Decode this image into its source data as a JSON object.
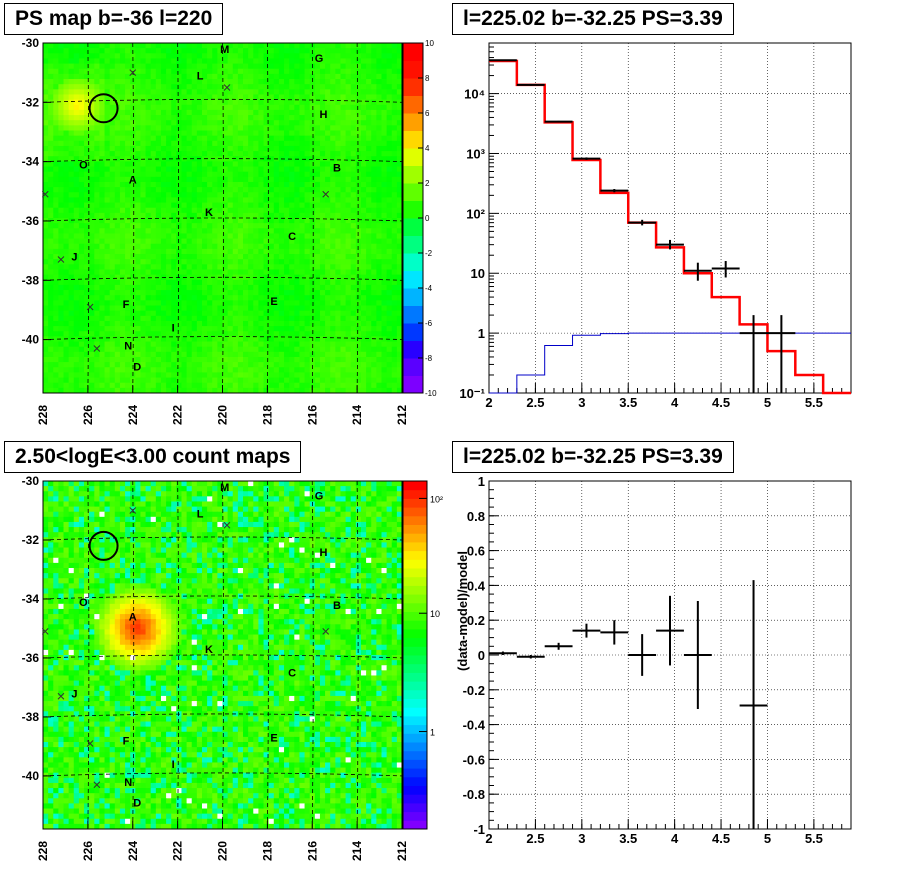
{
  "panels": {
    "tl_title": "PS map b=-36 l=220",
    "tr_title": "l=225.02 b=-32.25 PS=3.39",
    "bl_title": "2.50<logE<3.00 count maps",
    "br_title": "l=225.02 b=-32.25 PS=3.39"
  },
  "maps": {
    "x_ticks": [
      "228",
      "226",
      "224",
      "222",
      "220",
      "218",
      "216",
      "214",
      "212"
    ],
    "y_ticks": [
      "-30",
      "-32",
      "-34",
      "-36",
      "-38",
      "-40"
    ],
    "source_labels": [
      {
        "t": "M",
        "l": 219.9,
        "b": -30.2
      },
      {
        "t": "G",
        "l": 215.7,
        "b": -30.5
      },
      {
        "t": "L",
        "l": 221.0,
        "b": -31.1
      },
      {
        "t": "H",
        "l": 215.5,
        "b": -32.4
      },
      {
        "t": "O",
        "l": 226.2,
        "b": -34.1
      },
      {
        "t": "B",
        "l": 214.9,
        "b": -34.2
      },
      {
        "t": "A",
        "l": 224.0,
        "b": -34.6
      },
      {
        "t": "K",
        "l": 220.6,
        "b": -35.7
      },
      {
        "t": "C",
        "l": 216.9,
        "b": -36.5
      },
      {
        "t": "J",
        "l": 226.6,
        "b": -37.2
      },
      {
        "t": "E",
        "l": 217.7,
        "b": -38.7
      },
      {
        "t": "F",
        "l": 224.3,
        "b": -38.8
      },
      {
        "t": "I",
        "l": 222.2,
        "b": -39.6
      },
      {
        "t": "N",
        "l": 224.2,
        "b": -40.2
      },
      {
        "t": "D",
        "l": 223.8,
        "b": -40.9
      }
    ],
    "crosses": [
      {
        "l": 224.0,
        "b": -31.0
      },
      {
        "l": 219.8,
        "b": -31.5
      },
      {
        "l": 215.4,
        "b": -35.1
      },
      {
        "l": 227.9,
        "b": -35.1
      },
      {
        "l": 227.2,
        "b": -37.3
      },
      {
        "l": 225.9,
        "b": -38.9
      },
      {
        "l": 225.6,
        "b": -40.3
      }
    ],
    "circle": {
      "l": 225.3,
      "b": -32.2
    },
    "ps_colorbar": {
      "ticks": [
        "10",
        "8",
        "6",
        "4",
        "2",
        "0",
        "-2",
        "-4",
        "-6",
        "-8",
        "-10"
      ],
      "colors": [
        "#7d00ff",
        "#5a00ff",
        "#2800ff",
        "#0038ff",
        "#0078ff",
        "#00b4ff",
        "#00e6ff",
        "#00ffc8",
        "#00ff80",
        "#00ff40",
        "#20ff00",
        "#60ff00",
        "#a0ff00",
        "#e0ff00",
        "#ffd800",
        "#ffa000",
        "#ff6800",
        "#ff3000",
        "#ff1000",
        "#ff0000"
      ]
    },
    "count_colorbar": {
      "ticks": [
        "10²",
        "10",
        "1"
      ]
    }
  },
  "chart_data": [
    {
      "type": "line",
      "title": "l=225.02 b=-32.25 PS=3.39",
      "xlabel": "",
      "ylabel": "",
      "xlim": [
        2,
        5.9
      ],
      "ylim": [
        0.1,
        70000
      ],
      "yscale": "log",
      "x_ticks": [
        "2",
        "2.5",
        "3",
        "3.5",
        "4",
        "4.5",
        "5",
        "5.5"
      ],
      "y_ticks": [
        "10⁻¹",
        "1",
        "10",
        "10²",
        "10³",
        "10⁴"
      ],
      "grid": true,
      "bin_edges": [
        2.0,
        2.3,
        2.6,
        2.9,
        3.2,
        3.5,
        3.8,
        4.1,
        4.4,
        4.7,
        5.0,
        5.3,
        5.6,
        5.9
      ],
      "series": [
        {
          "name": "",
          "color": "#ff0000",
          "values": [
            35000,
            14000,
            3300,
            780,
            220,
            70,
            27,
            10,
            4,
            1.4,
            0.5,
            0.2,
            0.1
          ]
        },
        {
          "name": "",
          "color": "#0000c8",
          "values": [
            0.1,
            0.2,
            0.62,
            0.92,
            0.98,
            1.0,
            1.0,
            1.0,
            1.0,
            1.0,
            1.0,
            1.0,
            1.0
          ]
        }
      ],
      "points": [
        {
          "x": 2.15,
          "y": 36000,
          "lo": 35000,
          "hi": 37000
        },
        {
          "x": 2.45,
          "y": 14000,
          "lo": 13500,
          "hi": 14500
        },
        {
          "x": 2.75,
          "y": 3400,
          "lo": 3300,
          "hi": 3500
        },
        {
          "x": 3.05,
          "y": 820,
          "lo": 780,
          "hi": 860
        },
        {
          "x": 3.35,
          "y": 240,
          "lo": 225,
          "hi": 255
        },
        {
          "x": 3.65,
          "y": 70,
          "lo": 63,
          "hi": 78
        },
        {
          "x": 3.95,
          "y": 30,
          "lo": 25,
          "hi": 36
        },
        {
          "x": 4.25,
          "y": 11,
          "lo": 7.5,
          "hi": 15
        },
        {
          "x": 4.55,
          "y": 12,
          "lo": 8.5,
          "hi": 16
        },
        {
          "x": 4.85,
          "y": 1.0,
          "lo": 0.1,
          "hi": 2.0
        },
        {
          "x": 5.15,
          "y": 1.0,
          "lo": 0.1,
          "hi": 2.0
        }
      ]
    },
    {
      "type": "scatter",
      "title": "l=225.02 b=-32.25 PS=3.39",
      "xlabel": "",
      "ylabel": "(data-model)/model",
      "xlim": [
        2,
        5.9
      ],
      "ylim": [
        -1,
        1
      ],
      "x_ticks": [
        "2",
        "2.5",
        "3",
        "3.5",
        "4",
        "4.5",
        "5",
        "5.5"
      ],
      "y_ticks": [
        "1",
        "0.8",
        "0.6",
        "0.4",
        "0.2",
        "0",
        "-0.2",
        "-0.4",
        "-0.6",
        "-0.8",
        "-1"
      ],
      "grid": true,
      "points": [
        {
          "x": 2.15,
          "y": 0.01,
          "err": 0.01
        },
        {
          "x": 2.45,
          "y": -0.01,
          "err": 0.01
        },
        {
          "x": 2.75,
          "y": 0.05,
          "err": 0.02
        },
        {
          "x": 3.05,
          "y": 0.14,
          "err": 0.04
        },
        {
          "x": 3.35,
          "y": 0.13,
          "err": 0.07
        },
        {
          "x": 3.65,
          "y": 0.0,
          "err": 0.12
        },
        {
          "x": 3.95,
          "y": 0.14,
          "err": 0.2
        },
        {
          "x": 4.25,
          "y": 0.0,
          "err": 0.31
        },
        {
          "x": 4.85,
          "y": -0.29,
          "err": 0.72
        }
      ]
    }
  ]
}
